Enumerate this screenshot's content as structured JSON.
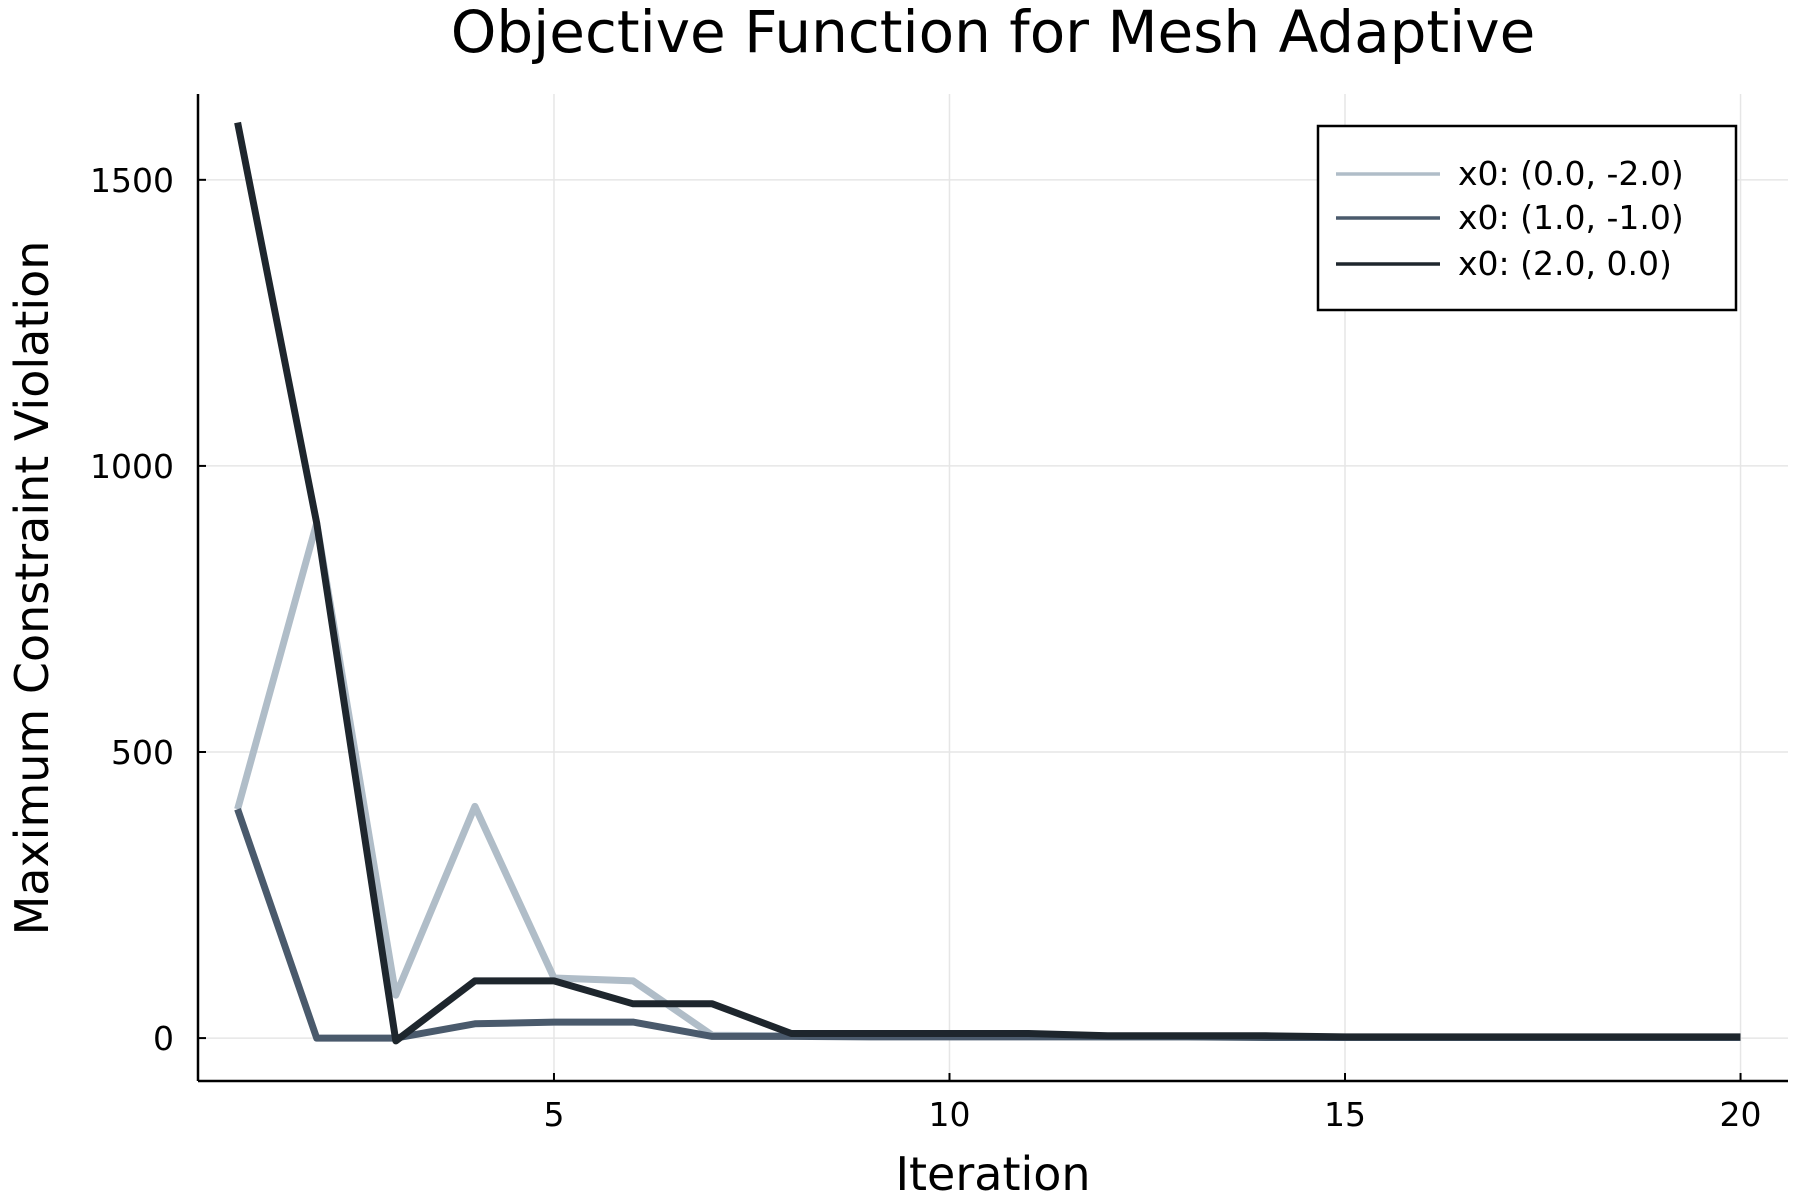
{
  "chart_data": {
    "type": "line",
    "title": "Objective Function for Mesh Adaptive",
    "xlabel": "Iteration",
    "ylabel": "Maximum Constraint Violation",
    "xlim": [
      0.5,
      20.6
    ],
    "ylim": [
      -75,
      1650
    ],
    "xticks": [
      5,
      10,
      15,
      20
    ],
    "yticks": [
      0,
      500,
      1000,
      1500
    ],
    "grid": true,
    "legend_position": "top-right",
    "x": [
      1,
      2,
      3,
      4,
      5,
      6,
      7,
      8,
      9,
      10,
      11,
      12,
      13,
      14,
      15,
      16,
      17,
      18,
      19,
      20
    ],
    "series": [
      {
        "name": "x0: (0.0, -2.0)",
        "color": "#b0bdc8",
        "values": [
          400,
          900,
          75,
          405,
          105,
          100,
          5,
          4,
          3,
          3,
          3,
          2,
          2,
          2,
          1,
          1,
          1,
          1,
          1,
          1
        ]
      },
      {
        "name": "x0: (1.0, -1.0)",
        "color": "#4a5a6c",
        "values": [
          400,
          0,
          0,
          25,
          28,
          28,
          3,
          3,
          2,
          2,
          2,
          2,
          2,
          1,
          1,
          1,
          1,
          1,
          1,
          1
        ]
      },
      {
        "name": "x0: (2.0, 0.0)",
        "color": "#1e262d",
        "values": [
          1600,
          900,
          -5,
          100,
          100,
          60,
          60,
          8,
          8,
          8,
          8,
          4,
          4,
          4,
          2,
          2,
          2,
          2,
          2,
          2
        ]
      }
    ]
  }
}
